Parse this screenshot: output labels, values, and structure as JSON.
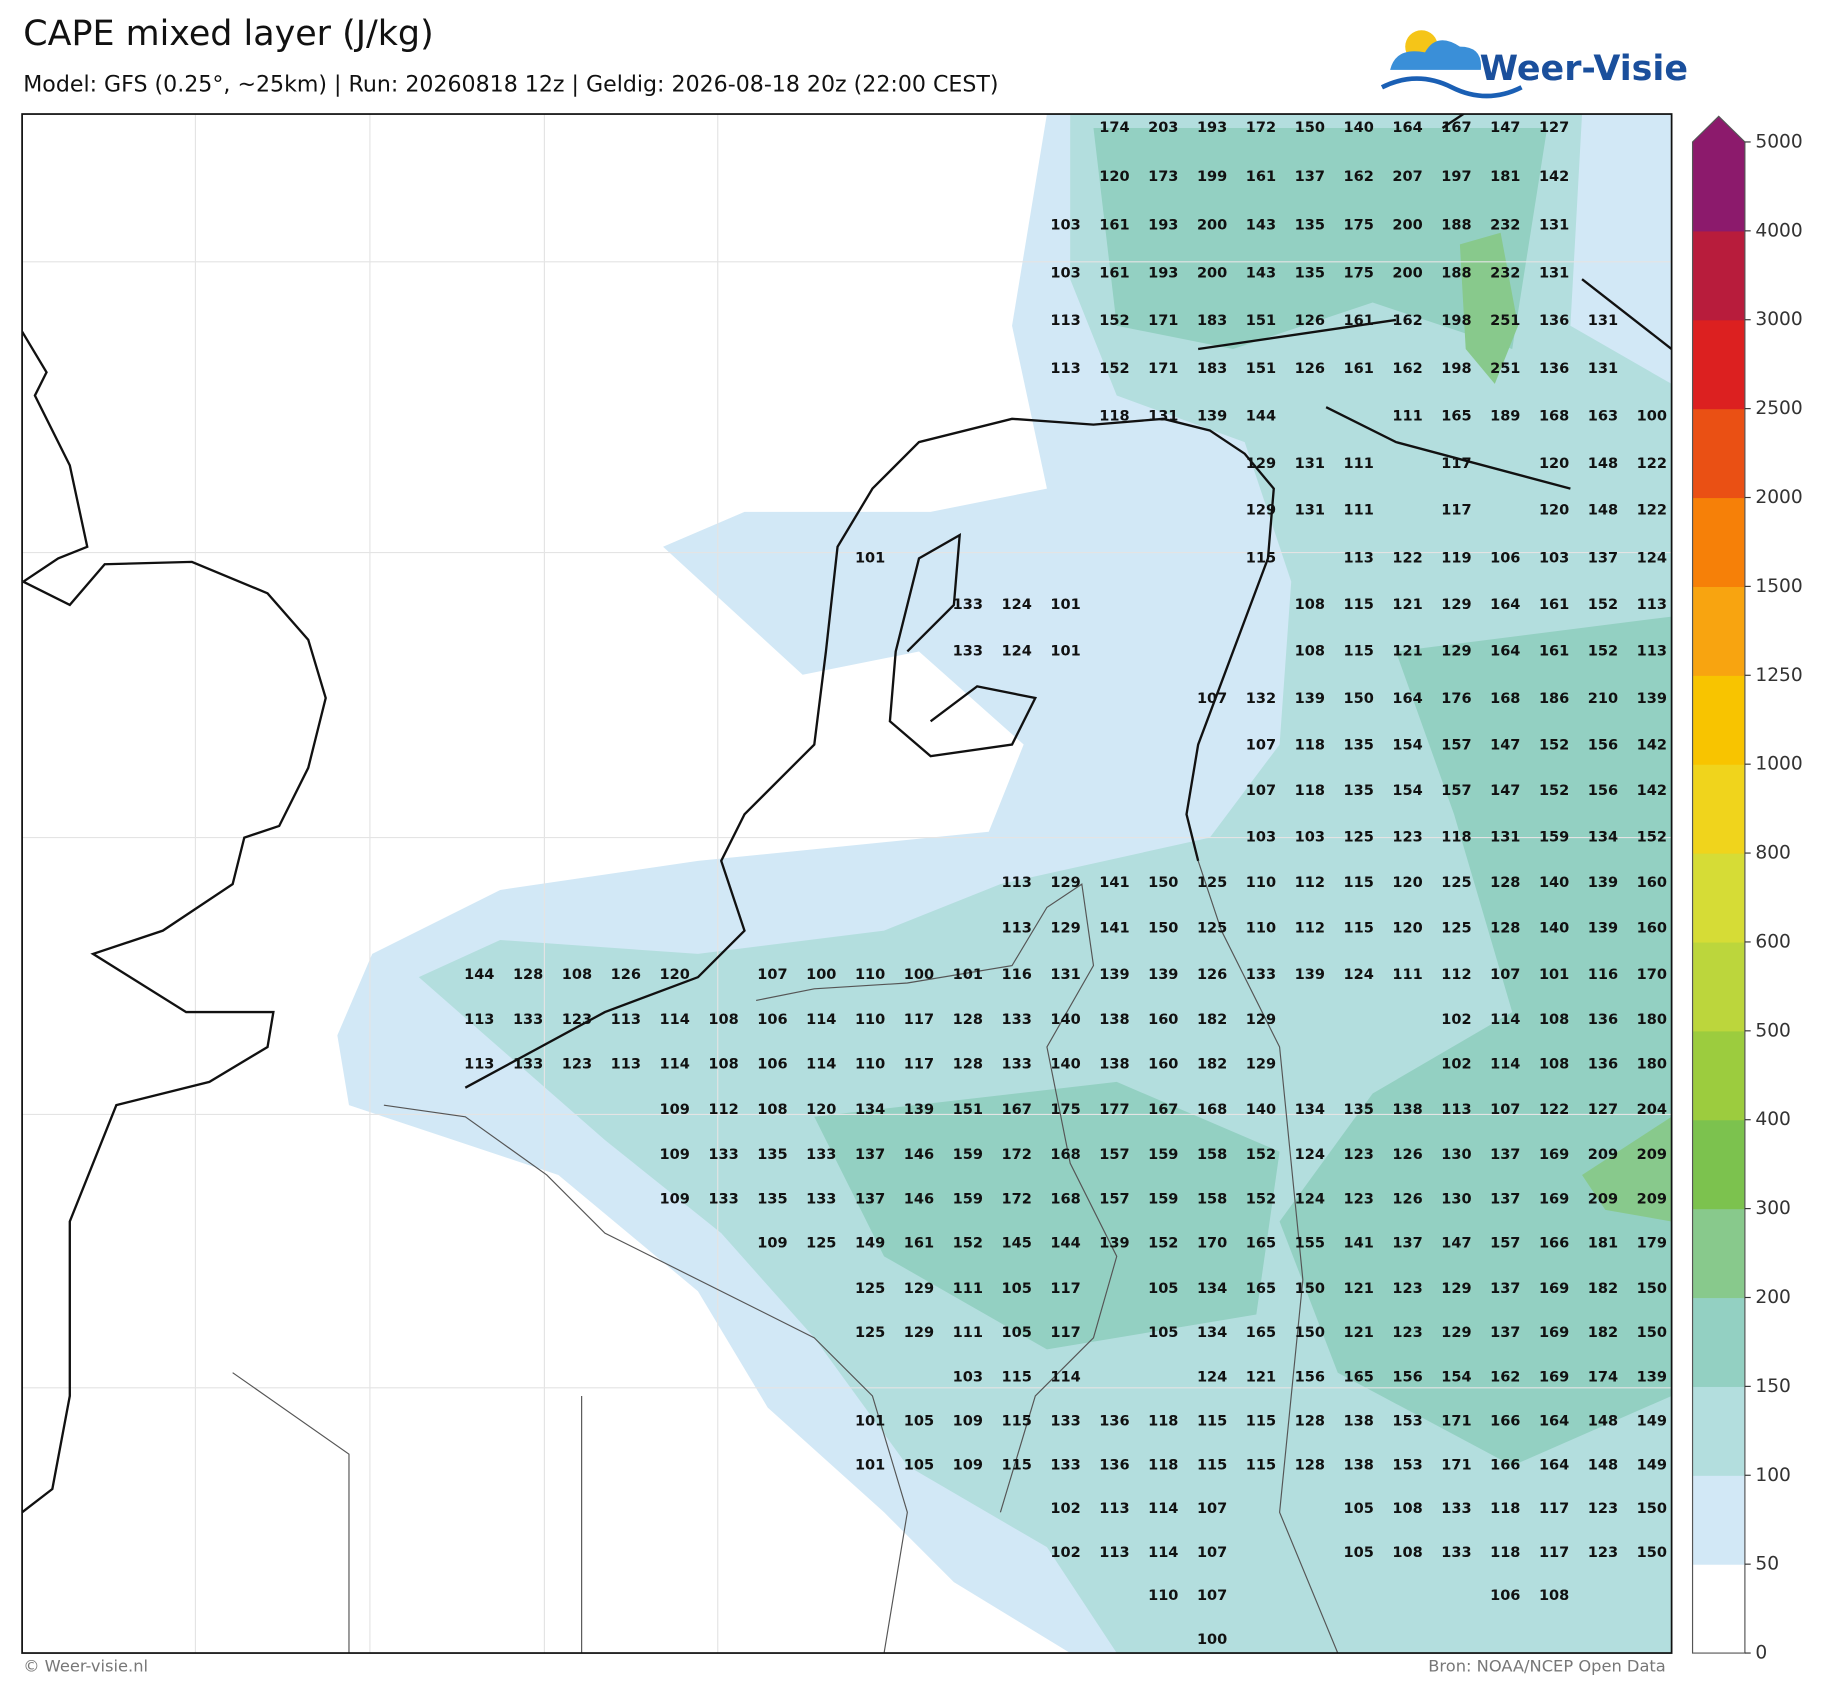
{
  "header": {
    "title": "CAPE mixed layer (J/kg)",
    "subtitle": "Model: GFS (0.25°, ~25km)  |  Run: 20260818 12z  |  Geldig: 2026-08-18 20z (22:00 CEST)",
    "logo": "Weer-Visie"
  },
  "map": {
    "labels": [
      [
        null,
        null,
        null,
        null,
        null,
        null,
        null,
        null,
        null,
        null,
        null,
        null,
        null,
        174,
        203,
        193,
        172,
        150,
        140,
        164,
        167,
        147,
        127,
        null,
        null
      ],
      [
        null,
        null,
        null,
        null,
        null,
        null,
        null,
        null,
        null,
        null,
        null,
        null,
        null,
        120,
        173,
        199,
        161,
        137,
        162,
        207,
        197,
        181,
        142,
        null,
        null
      ],
      [
        null,
        null,
        null,
        null,
        null,
        null,
        null,
        null,
        null,
        null,
        null,
        null,
        103,
        161,
        193,
        200,
        143,
        135,
        175,
        200,
        188,
        232,
        131,
        null,
        null
      ],
      [
        null,
        null,
        null,
        null,
        null,
        null,
        null,
        null,
        null,
        null,
        null,
        null,
        103,
        161,
        193,
        200,
        143,
        135,
        175,
        200,
        188,
        232,
        131,
        null,
        null
      ],
      [
        null,
        null,
        null,
        null,
        null,
        null,
        null,
        null,
        null,
        null,
        null,
        null,
        113,
        152,
        171,
        183,
        151,
        126,
        161,
        162,
        198,
        251,
        136,
        131,
        null
      ],
      [
        null,
        null,
        null,
        null,
        null,
        null,
        null,
        null,
        null,
        null,
        null,
        null,
        113,
        152,
        171,
        183,
        151,
        126,
        161,
        162,
        198,
        251,
        136,
        131,
        null
      ],
      [
        null,
        null,
        null,
        null,
        null,
        null,
        null,
        null,
        null,
        null,
        null,
        null,
        null,
        118,
        131,
        139,
        144,
        null,
        null,
        111,
        165,
        189,
        168,
        163,
        100
      ],
      [
        null,
        null,
        null,
        null,
        null,
        null,
        null,
        null,
        null,
        null,
        null,
        null,
        null,
        null,
        null,
        null,
        129,
        131,
        111,
        null,
        117,
        null,
        120,
        148,
        122
      ],
      [
        null,
        null,
        null,
        null,
        null,
        null,
        null,
        null,
        null,
        null,
        null,
        null,
        null,
        null,
        null,
        null,
        129,
        131,
        111,
        null,
        117,
        null,
        120,
        148,
        122
      ],
      [
        null,
        null,
        null,
        null,
        null,
        null,
        null,
        null,
        101,
        null,
        null,
        null,
        null,
        null,
        null,
        null,
        115,
        null,
        113,
        122,
        119,
        106,
        103,
        137,
        124
      ],
      [
        null,
        null,
        null,
        null,
        null,
        null,
        null,
        null,
        null,
        null,
        133,
        124,
        101,
        null,
        null,
        null,
        null,
        108,
        115,
        121,
        129,
        164,
        161,
        152,
        113
      ],
      [
        null,
        null,
        null,
        null,
        null,
        null,
        null,
        null,
        null,
        null,
        133,
        124,
        101,
        null,
        null,
        null,
        null,
        108,
        115,
        121,
        129,
        164,
        161,
        152,
        113
      ],
      [
        null,
        null,
        null,
        null,
        null,
        null,
        null,
        null,
        null,
        null,
        null,
        null,
        null,
        null,
        null,
        107,
        132,
        139,
        150,
        164,
        176,
        168,
        186,
        210,
        139
      ],
      [
        null,
        null,
        null,
        null,
        null,
        null,
        null,
        null,
        null,
        null,
        null,
        null,
        null,
        null,
        null,
        null,
        107,
        118,
        135,
        154,
        157,
        147,
        152,
        156,
        142
      ],
      [
        null,
        null,
        null,
        null,
        null,
        null,
        null,
        null,
        null,
        null,
        null,
        null,
        null,
        null,
        null,
        null,
        107,
        118,
        135,
        154,
        157,
        147,
        152,
        156,
        142
      ],
      [
        null,
        null,
        null,
        null,
        null,
        null,
        null,
        null,
        null,
        null,
        null,
        null,
        null,
        null,
        null,
        null,
        103,
        103,
        125,
        123,
        118,
        131,
        159,
        134,
        152
      ],
      [
        null,
        null,
        null,
        null,
        null,
        null,
        null,
        null,
        null,
        null,
        null,
        113,
        129,
        141,
        150,
        125,
        110,
        112,
        115,
        120,
        125,
        128,
        140,
        139,
        160
      ],
      [
        null,
        null,
        null,
        null,
        null,
        null,
        null,
        null,
        null,
        null,
        null,
        113,
        129,
        141,
        150,
        125,
        110,
        112,
        115,
        120,
        125,
        128,
        140,
        139,
        160
      ],
      [
        144,
        128,
        108,
        126,
        120,
        null,
        107,
        100,
        110,
        100,
        101,
        116,
        131,
        139,
        139,
        126,
        133,
        139,
        124,
        111,
        112,
        107,
        101,
        116,
        170
      ],
      [
        113,
        133,
        123,
        113,
        114,
        108,
        106,
        114,
        110,
        117,
        128,
        133,
        140,
        138,
        160,
        182,
        129,
        null,
        null,
        null,
        102,
        114,
        108,
        136,
        180
      ],
      [
        113,
        133,
        123,
        113,
        114,
        108,
        106,
        114,
        110,
        117,
        128,
        133,
        140,
        138,
        160,
        182,
        129,
        null,
        null,
        null,
        102,
        114,
        108,
        136,
        180
      ],
      [
        null,
        null,
        null,
        null,
        109,
        112,
        108,
        120,
        134,
        139,
        151,
        167,
        175,
        177,
        167,
        168,
        140,
        134,
        135,
        138,
        113,
        107,
        122,
        127,
        204
      ],
      [
        null,
        null,
        null,
        null,
        109,
        133,
        135,
        133,
        137,
        146,
        159,
        172,
        168,
        157,
        159,
        158,
        152,
        124,
        123,
        126,
        130,
        137,
        169,
        209,
        209
      ],
      [
        null,
        null,
        null,
        null,
        109,
        133,
        135,
        133,
        137,
        146,
        159,
        172,
        168,
        157,
        159,
        158,
        152,
        124,
        123,
        126,
        130,
        137,
        169,
        209,
        209
      ],
      [
        null,
        null,
        null,
        null,
        null,
        null,
        109,
        125,
        149,
        161,
        152,
        145,
        144,
        139,
        152,
        170,
        165,
        155,
        141,
        137,
        147,
        157,
        166,
        181,
        179
      ],
      [
        null,
        null,
        null,
        null,
        null,
        null,
        null,
        null,
        125,
        129,
        111,
        105,
        117,
        null,
        105,
        134,
        165,
        150,
        121,
        123,
        129,
        137,
        169,
        182,
        150
      ],
      [
        null,
        null,
        null,
        null,
        null,
        null,
        null,
        null,
        125,
        129,
        111,
        105,
        117,
        null,
        105,
        134,
        165,
        150,
        121,
        123,
        129,
        137,
        169,
        182,
        150
      ],
      [
        null,
        null,
        null,
        null,
        null,
        null,
        null,
        null,
        null,
        null,
        103,
        115,
        114,
        null,
        null,
        124,
        121,
        156,
        165,
        156,
        154,
        162,
        169,
        174,
        139
      ],
      [
        null,
        null,
        null,
        null,
        null,
        null,
        null,
        null,
        101,
        105,
        109,
        115,
        133,
        136,
        118,
        115,
        115,
        128,
        138,
        153,
        171,
        166,
        164,
        148,
        149
      ],
      [
        null,
        null,
        null,
        null,
        null,
        null,
        null,
        null,
        101,
        105,
        109,
        115,
        133,
        136,
        118,
        115,
        115,
        128,
        138,
        153,
        171,
        166,
        164,
        148,
        149
      ],
      [
        null,
        null,
        null,
        null,
        null,
        null,
        null,
        null,
        null,
        null,
        null,
        null,
        102,
        113,
        114,
        107,
        null,
        null,
        105,
        108,
        133,
        118,
        117,
        123,
        150
      ],
      [
        null,
        null,
        null,
        null,
        null,
        null,
        null,
        null,
        null,
        null,
        null,
        null,
        102,
        113,
        114,
        107,
        null,
        null,
        105,
        108,
        133,
        118,
        117,
        123,
        150
      ],
      [
        null,
        null,
        null,
        null,
        null,
        null,
        null,
        null,
        null,
        null,
        null,
        null,
        null,
        null,
        110,
        107,
        null,
        null,
        null,
        null,
        null,
        106,
        108,
        null,
        null
      ],
      [
        null,
        null,
        null,
        null,
        null,
        null,
        null,
        null,
        null,
        null,
        null,
        null,
        null,
        null,
        null,
        100,
        null,
        null,
        null,
        null,
        null,
        null,
        null,
        null,
        null
      ]
    ]
  },
  "colorbar": {
    "ticks": [
      0,
      50,
      100,
      150,
      200,
      300,
      400,
      500,
      600,
      800,
      1000,
      1250,
      1500,
      2000,
      2500,
      3000,
      4000,
      5000
    ],
    "colors": [
      "#ffffff",
      "#d2e8f6",
      "#b3dede",
      "#93d0c2",
      "#88c98c",
      "#7cc24e",
      "#9ccc3e",
      "#bcd63c",
      "#d6dc36",
      "#f0d41c",
      "#f8c400",
      "#f8a410",
      "#f68008",
      "#ea5014",
      "#dc2020",
      "#b81c3c",
      "#8c1a6c"
    ]
  },
  "footer": {
    "copyright": "© Weer-visie.nl",
    "source": "Bron: NOAA/NCEP Open Data"
  }
}
